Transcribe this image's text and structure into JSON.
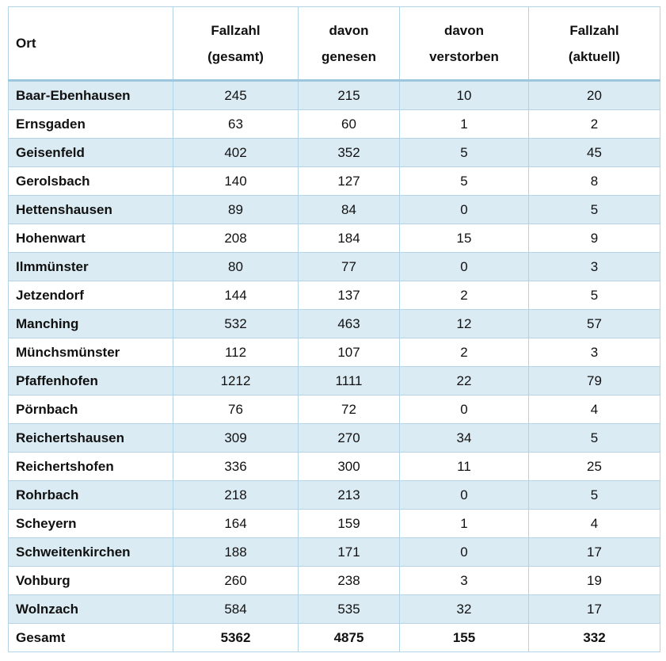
{
  "table": {
    "header": [
      [
        "Ort"
      ],
      [
        "Fallzahl",
        "(gesamt)"
      ],
      [
        "davon",
        "genesen"
      ],
      [
        "davon",
        "verstorben"
      ],
      [
        "Fallzahl",
        "(aktuell)"
      ]
    ],
    "rows": [
      [
        "Baar-Ebenhausen",
        245,
        215,
        10,
        20
      ],
      [
        "Ernsgaden",
        63,
        60,
        1,
        2
      ],
      [
        "Geisenfeld",
        402,
        352,
        5,
        45
      ],
      [
        "Gerolsbach",
        140,
        127,
        5,
        8
      ],
      [
        "Hettenshausen",
        89,
        84,
        0,
        5
      ],
      [
        "Hohenwart",
        208,
        184,
        15,
        9
      ],
      [
        "Ilmmünster",
        80,
        77,
        0,
        3
      ],
      [
        "Jetzendorf",
        144,
        137,
        2,
        5
      ],
      [
        "Manching",
        532,
        463,
        12,
        57
      ],
      [
        "Münchsmünster",
        112,
        107,
        2,
        3
      ],
      [
        "Pfaffenhofen",
        1212,
        1111,
        22,
        79
      ],
      [
        "Pörnbach",
        76,
        72,
        0,
        4
      ],
      [
        "Reichertshausen",
        309,
        270,
        34,
        5
      ],
      [
        "Reichertshofen",
        336,
        300,
        11,
        25
      ],
      [
        "Rohrbach",
        218,
        213,
        0,
        5
      ],
      [
        "Scheyern",
        164,
        159,
        1,
        4
      ],
      [
        "Schweitenkirchen",
        188,
        171,
        0,
        17
      ],
      [
        "Vohburg",
        260,
        238,
        3,
        19
      ],
      [
        "Wolnzach",
        584,
        535,
        32,
        17
      ]
    ],
    "total": [
      "Gesamt",
      5362,
      4875,
      155,
      332
    ]
  }
}
